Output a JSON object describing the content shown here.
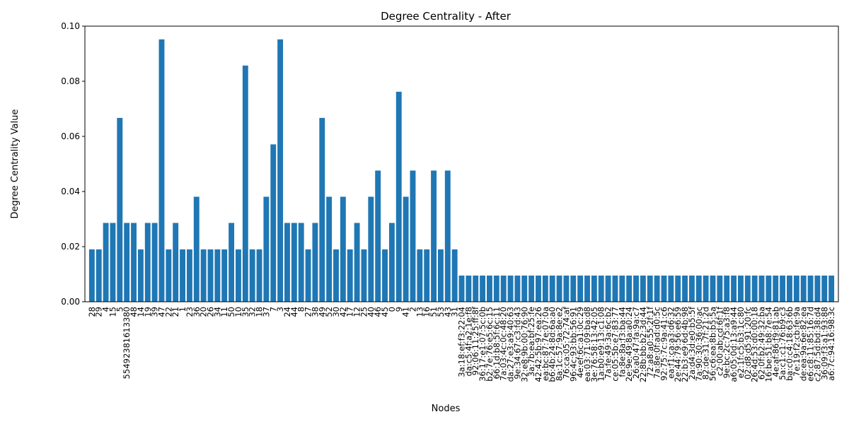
{
  "chart_data": {
    "type": "bar",
    "title": "Degree Centrality - After",
    "x_label": "Nodes",
    "y_label": "Degree Centrality Value",
    "color": "#1f77b4",
    "categories": [
      "28",
      "29",
      "4",
      "15",
      "5",
      "55492381613380",
      "48",
      "14",
      "19",
      "39",
      "47",
      "22",
      "21",
      "1",
      "23",
      "36",
      "20",
      "26",
      "34",
      "11",
      "50",
      "10",
      "35",
      "32",
      "18",
      "37",
      "7",
      "3",
      "24",
      "44",
      "8",
      "27",
      "38",
      "49",
      "52",
      "30",
      "42",
      "17",
      "12",
      "25",
      "40",
      "46",
      "45",
      "0",
      "9",
      "41",
      "2",
      "13",
      "16",
      "51",
      "53",
      "43",
      "31",
      "3a:18:ef:f3:22:04",
      "da:c5:4f:a2:1e:f8",
      "92:06:11:25:ff:8f",
      "36:17:e1:07:5c:0b",
      "b2:7e:76:e5:6c:15",
      "66:1d:b8:5f:6c:11",
      "7a:03:4c:0c:48:20",
      "da:27:e3:a9:40:63",
      "9e:34:67:c3:fd:43",
      "32:e8:9b:00:76:90",
      "3a:7b:ea:bf:25:fe",
      "42:42:5b:97:ea:26",
      "ea:bc:87:7e:07:0a",
      "b6:4b:24:8d:6a:a0",
      "8a:1c:57:9a:8e:e2",
      "76:ca:05:72:74:af",
      "96:4c:93:bb:56:91",
      "4e:ef:6c:a1:0c:29",
      "ea:03:71:09:ba:d8",
      "3e:76:58:13:42:05",
      "1a:b0:e9:13:c1:08",
      "7a:fe:49:3a:6c:b2",
      "ce:05:5b:e7:83:77",
      "fa:8e:8a:f3:ba:44",
      "2e:9e:49:8a:a0:24",
      "26:a0:47:fa:9a:c7",
      "22:8b:bb:b2:3d:44",
      "72:a8:a0:55:2f:1f",
      "7a:8e:0f:ad:d0:5c",
      "92:75:7c:9a:41:c6",
      "ea:f1:ca:a3:d6:32",
      "2e:44:79:56:e6:59",
      "22:b3:e9:6d:4b:98",
      "2a:d4:3d:e0:b5:5f",
      "7a:90:30:36:00:ac",
      "82:de:31:7f:21:2d",
      "56:c6:ea:8b:b5:5a",
      "c2:00:ab:cd:6f:1f",
      "9e:bc:2c:75:a3:f8",
      "a6:05:0d:13:a9:44",
      "e2:1f:c5:b3:1c:80",
      "02:d8:d5:91:20:fc",
      "26:4d:53:d0:00:18",
      "62:0f:b2:49:32:ba",
      "16:be:51:b8:7e:54",
      "4e:af:86:f9:81:ab",
      "5a:c1:c1:76:b9:c3",
      "ba:c0:c4:18:63:6b",
      "7e:19:f2:cb:fe:9a",
      "de:ea:9a:6e:82:ea",
      "e6:c8:11:85:16:7d",
      "c2:87:5d:bd:38:d4",
      "36:09:f3:a1:93:88",
      "a6:7c:94:16:98:3c"
    ],
    "values": [
      0.019,
      0.019,
      0.0286,
      0.0286,
      0.0667,
      0.0286,
      0.0286,
      0.019,
      0.0286,
      0.0286,
      0.0952,
      0.019,
      0.0286,
      0.019,
      0.019,
      0.0381,
      0.019,
      0.019,
      0.019,
      0.019,
      0.0286,
      0.019,
      0.0857,
      0.019,
      0.019,
      0.0381,
      0.0571,
      0.0952,
      0.0286,
      0.0286,
      0.0286,
      0.019,
      0.0286,
      0.0667,
      0.0381,
      0.019,
      0.0381,
      0.019,
      0.0286,
      0.019,
      0.0381,
      0.0476,
      0.019,
      0.0286,
      0.0762,
      0.0381,
      0.0476,
      0.019,
      0.019,
      0.0476,
      0.019,
      0.0476,
      0.019,
      0.0095,
      0.0095,
      0.0095,
      0.0095,
      0.0095,
      0.0095,
      0.0095,
      0.0095,
      0.0095,
      0.0095,
      0.0095,
      0.0095,
      0.0095,
      0.0095,
      0.0095,
      0.0095,
      0.0095,
      0.0095,
      0.0095,
      0.0095,
      0.0095,
      0.0095,
      0.0095,
      0.0095,
      0.0095,
      0.0095,
      0.0095,
      0.0095,
      0.0095,
      0.0095,
      0.0095,
      0.0095,
      0.0095,
      0.0095,
      0.0095,
      0.0095,
      0.0095,
      0.0095,
      0.0095,
      0.0095,
      0.0095,
      0.0095,
      0.0095,
      0.0095,
      0.0095,
      0.0095,
      0.0095,
      0.0095,
      0.0095,
      0.0095,
      0.0095,
      0.0095,
      0.0095,
      0.0095
    ],
    "ylim": [
      0,
      0.1
    ],
    "yticks": [
      {
        "value": 0,
        "label": "0.00"
      },
      {
        "value": 0.02,
        "label": "0.02"
      },
      {
        "value": 0.04,
        "label": "0.04"
      },
      {
        "value": 0.06,
        "label": "0.06"
      },
      {
        "value": 0.08,
        "label": "0.08"
      },
      {
        "value": 0.1,
        "label": "0.10"
      }
    ]
  }
}
